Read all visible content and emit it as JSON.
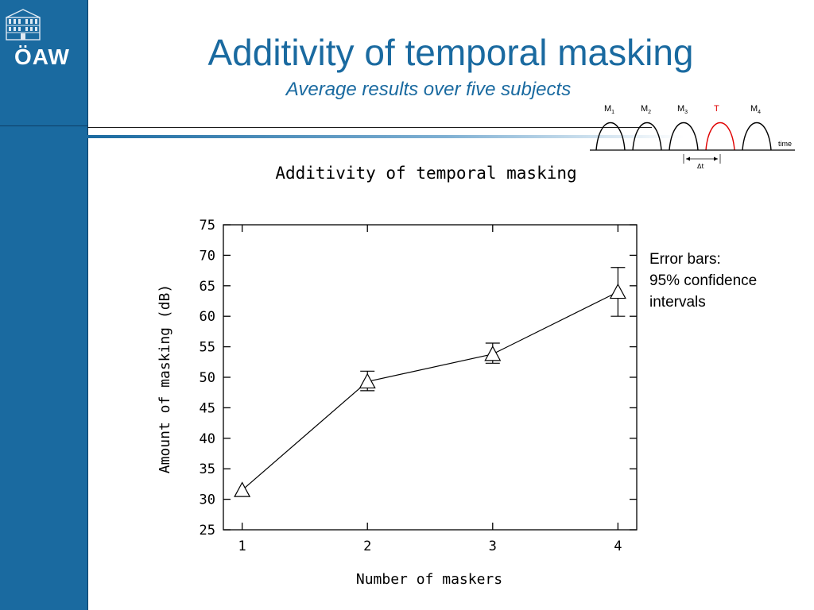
{
  "slide": {
    "title": "Additivity of temporal masking",
    "subtitle": "Average results over five subjects",
    "logo_text": "ÖAW"
  },
  "note": {
    "line1": "Error bars:",
    "line2": "95% confidence",
    "line3": "intervals"
  },
  "inset": {
    "labels": [
      {
        "main": "M",
        "sub": "1",
        "color": "#000000"
      },
      {
        "main": "M",
        "sub": "2",
        "color": "#000000"
      },
      {
        "main": "M",
        "sub": "3",
        "color": "#000000"
      },
      {
        "main": "T",
        "sub": "",
        "color": "#e00000"
      },
      {
        "main": "M",
        "sub": "4",
        "color": "#000000"
      }
    ],
    "time_label": "time",
    "delta_label": "Δt"
  },
  "chart_data": {
    "type": "line",
    "title": "Additivity of temporal masking",
    "xlabel": "Number of maskers",
    "ylabel": "Amount of masking (dB)",
    "x": [
      1,
      2,
      3,
      4
    ],
    "y": [
      31.5,
      49.3,
      53.8,
      64.0
    ],
    "error_low": [
      31.5,
      47.8,
      52.3,
      60.0
    ],
    "error_high": [
      31.5,
      51.0,
      55.6,
      68.0
    ],
    "xticks": [
      "1",
      "2",
      "3",
      "4"
    ],
    "yticks": [
      "25",
      "30",
      "35",
      "40",
      "45",
      "50",
      "55",
      "60",
      "65",
      "70",
      "75"
    ],
    "xlim": [
      0.85,
      4.15
    ],
    "ylim": [
      25,
      75
    ],
    "marker": "triangle",
    "grid": false
  }
}
